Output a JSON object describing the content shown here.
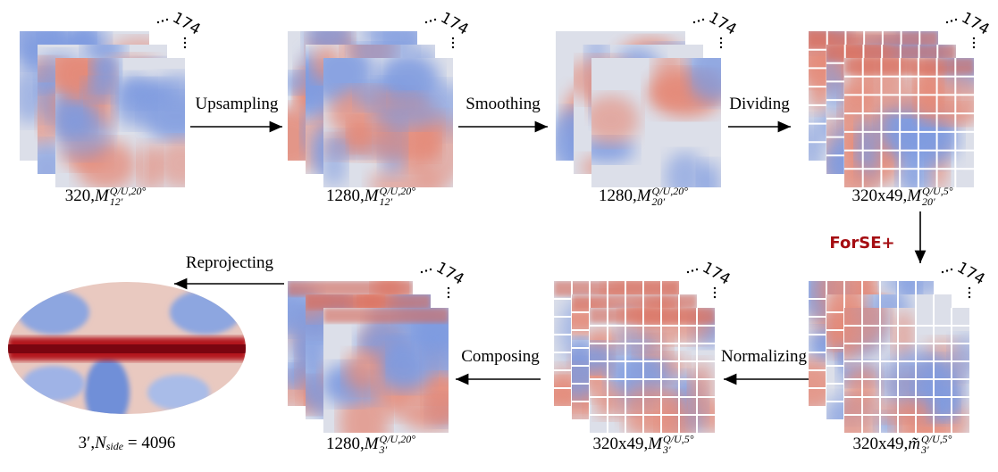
{
  "nodes": [
    {
      "count": "174",
      "caption": {
        "prefix": "320, ",
        "symbol": "M",
        "sup": "Q/U,20°",
        "sub": "12′"
      }
    },
    {
      "count": "174",
      "caption": {
        "prefix": "1280, ",
        "symbol": "M",
        "sup": "Q/U,20°",
        "sub": "12′"
      }
    },
    {
      "count": "174",
      "caption": {
        "prefix": "1280, ",
        "symbol": "M",
        "sup": "Q/U,20°",
        "sub": "20′"
      }
    },
    {
      "count": "174",
      "caption": {
        "prefix": "320x49, ",
        "symbol": "M",
        "sup": "Q/U,5°",
        "sub": "20′"
      }
    },
    {
      "count": "174",
      "caption": {
        "prefix": "320x49, ",
        "symbol": "m̃",
        "sup": "Q/U,5°",
        "sub": "3′"
      }
    },
    {
      "count": "174",
      "caption": {
        "prefix": "320x49, ",
        "symbol": "M",
        "sup": "Q/U,5°",
        "sub": "3′"
      }
    },
    {
      "count": "174",
      "caption": {
        "prefix": "1280, ",
        "symbol": "M",
        "sup": "Q/U,20°",
        "sub": "3′"
      }
    }
  ],
  "edges": [
    {
      "label": "Upsampling"
    },
    {
      "label": "Smoothing"
    },
    {
      "label": "Dividing"
    },
    {
      "label": "ForSE+"
    },
    {
      "label": "Normalizing"
    },
    {
      "label": "Composing"
    },
    {
      "label": "Reprojecting"
    }
  ],
  "map_caption": {
    "prefix": "3′, ",
    "symbol": "N",
    "sub": "side",
    "suffix": " = 4096"
  }
}
